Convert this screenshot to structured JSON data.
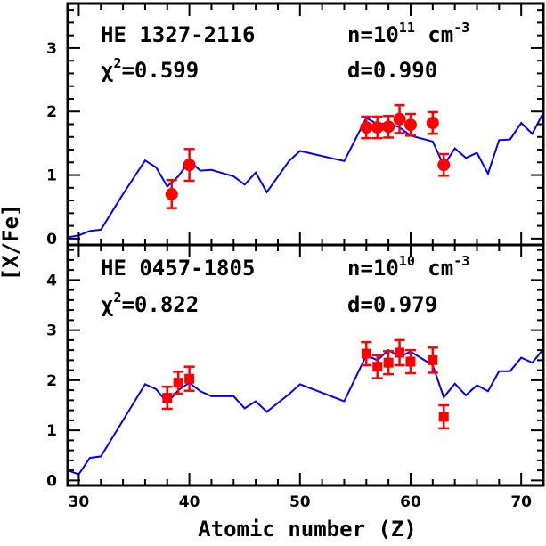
{
  "chart_data": [
    {
      "type": "line",
      "star": "HE 1327-2116",
      "density_base": "n=10",
      "density_exp": "11",
      "density_unit": " cm",
      "density_unit_exp": "-3",
      "chi_base": "χ",
      "chi_exp": "2",
      "chi_value": "=0.599",
      "dilution": "d=0.990",
      "xlim": [
        29,
        72
      ],
      "ylim": [
        -0.1,
        3.7
      ],
      "yticks": [
        0,
        1,
        2,
        3
      ],
      "xticks": [
        30,
        40,
        50,
        60,
        70
      ],
      "model": {
        "color": "#0000ff",
        "x": [
          29,
          30,
          31,
          32,
          34,
          36,
          37,
          38,
          39,
          40,
          41,
          42,
          44,
          45,
          46,
          47,
          49,
          50,
          54,
          56,
          57,
          58,
          59,
          60,
          62,
          63,
          64,
          65,
          66,
          67,
          68,
          69,
          70,
          71,
          72
        ],
        "y": [
          0.02,
          0.05,
          0.12,
          0.14,
          0.7,
          1.23,
          1.12,
          0.82,
          0.98,
          1.22,
          1.07,
          1.08,
          0.98,
          0.85,
          1.04,
          0.73,
          1.22,
          1.38,
          1.22,
          1.9,
          1.8,
          1.82,
          1.75,
          1.62,
          1.53,
          1.15,
          1.42,
          1.27,
          1.35,
          1.02,
          1.55,
          1.56,
          1.82,
          1.65,
          1.98
        ]
      },
      "observed": {
        "color": "#ff0000",
        "marker": "circle",
        "points": [
          {
            "z": 38.4,
            "v": 0.7,
            "err": 0.22
          },
          {
            "z": 40,
            "v": 1.16,
            "err": 0.25
          },
          {
            "z": 56,
            "v": 1.75,
            "err": 0.17
          },
          {
            "z": 57,
            "v": 1.75,
            "err": 0.17
          },
          {
            "z": 58,
            "v": 1.76,
            "err": 0.17
          },
          {
            "z": 59,
            "v": 1.88,
            "err": 0.22
          },
          {
            "z": 60,
            "v": 1.79,
            "err": 0.17
          },
          {
            "z": 62,
            "v": 1.82,
            "err": 0.17
          },
          {
            "z": 63,
            "v": 1.16,
            "err": 0.17
          }
        ]
      }
    },
    {
      "type": "line",
      "star": "HE 0457-1805",
      "density_base": "n=10",
      "density_exp": "10",
      "density_unit": " cm",
      "density_unit_exp": "-3",
      "chi_base": "χ",
      "chi_exp": "2",
      "chi_value": "=0.822",
      "dilution": "d=0.979",
      "xlim": [
        29,
        72
      ],
      "ylim": [
        -0.1,
        4.7
      ],
      "yticks": [
        0,
        1,
        2,
        3,
        4
      ],
      "xticks": [
        30,
        40,
        50,
        60,
        70
      ],
      "xlabel": "Atomic number (Z)",
      "model": {
        "color": "#0000ff",
        "x": [
          29,
          30,
          31,
          32,
          34,
          36,
          37,
          38,
          39,
          40,
          41,
          42,
          44,
          45,
          46,
          47,
          49,
          50,
          54,
          56,
          57,
          58,
          59,
          60,
          62,
          63,
          64,
          65,
          66,
          67,
          68,
          69,
          70,
          71,
          72
        ],
        "y": [
          0.2,
          0.12,
          0.45,
          0.48,
          1.2,
          1.92,
          1.82,
          1.55,
          1.8,
          1.95,
          1.78,
          1.68,
          1.68,
          1.44,
          1.58,
          1.37,
          1.72,
          1.92,
          1.58,
          2.5,
          2.4,
          2.6,
          2.47,
          2.57,
          2.3,
          1.66,
          1.93,
          1.7,
          1.9,
          1.78,
          2.18,
          2.18,
          2.45,
          2.35,
          2.62
        ]
      },
      "observed": {
        "color": "#ff0000",
        "marker": "square",
        "points": [
          {
            "z": 38,
            "v": 1.65,
            "err": 0.22
          },
          {
            "z": 39,
            "v": 1.95,
            "err": 0.22
          },
          {
            "z": 40,
            "v": 2.03,
            "err": 0.24
          },
          {
            "z": 56,
            "v": 2.53,
            "err": 0.23
          },
          {
            "z": 57,
            "v": 2.27,
            "err": 0.23
          },
          {
            "z": 58,
            "v": 2.35,
            "err": 0.23
          },
          {
            "z": 59,
            "v": 2.55,
            "err": 0.25
          },
          {
            "z": 60,
            "v": 2.37,
            "err": 0.23
          },
          {
            "z": 62,
            "v": 2.4,
            "err": 0.25
          },
          {
            "z": 63,
            "v": 1.27,
            "err": 0.23
          }
        ]
      }
    }
  ],
  "ylabel": "[X/Fe]"
}
